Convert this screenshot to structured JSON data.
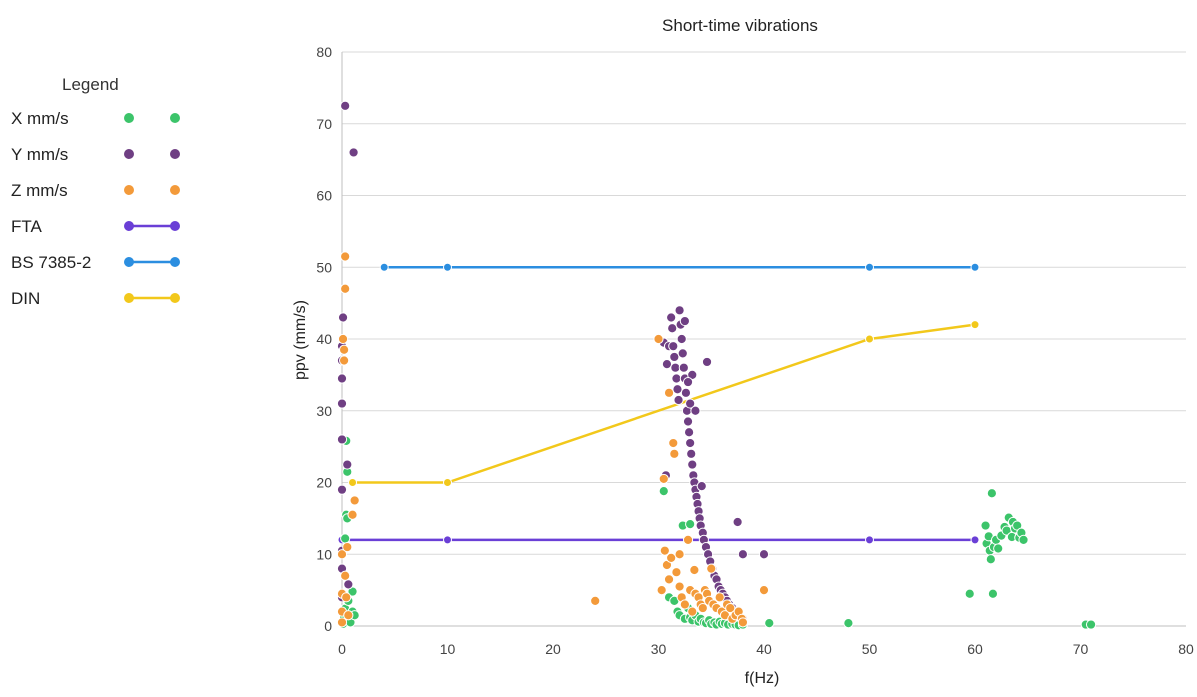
{
  "chart_data": {
    "type": "scatter",
    "title": "Short-time vibrations",
    "xlabel": "f(Hz)",
    "ylabel": "ppv (mm/s)",
    "xlim": [
      0,
      80
    ],
    "ylim": [
      0,
      80
    ],
    "xticks": [
      "0",
      "10",
      "20",
      "30",
      "40",
      "50",
      "60",
      "70",
      "80"
    ],
    "yticks": [
      "0",
      "10",
      "20",
      "30",
      "40",
      "50",
      "60",
      "70",
      "80"
    ],
    "grid": "horizontal",
    "legend_position": "left",
    "legend_title": "Legend",
    "scatter_series": [
      {
        "name": "X   mm/s",
        "color": "#3cc46a",
        "points": [
          [
            0.1,
            0.3
          ],
          [
            0.2,
            1.2
          ],
          [
            0.3,
            2.4
          ],
          [
            0.3,
            4.0
          ],
          [
            0.3,
            12.2
          ],
          [
            0.4,
            15.5
          ],
          [
            0.4,
            25.8
          ],
          [
            0.5,
            21.5
          ],
          [
            0.5,
            15.0
          ],
          [
            0.6,
            3.5
          ],
          [
            0.8,
            1.0
          ],
          [
            0.8,
            0.5
          ],
          [
            1.0,
            2.0
          ],
          [
            1.0,
            4.8
          ],
          [
            1.2,
            1.5
          ],
          [
            30.5,
            18.8
          ],
          [
            31.0,
            4.0
          ],
          [
            31.0,
            6.5
          ],
          [
            31.5,
            3.5
          ],
          [
            31.8,
            2.0
          ],
          [
            32.0,
            1.5
          ],
          [
            32.3,
            14.0
          ],
          [
            32.5,
            1.0
          ],
          [
            32.8,
            2.5
          ],
          [
            33.0,
            14.2
          ],
          [
            33.0,
            1.2
          ],
          [
            33.2,
            0.8
          ],
          [
            33.5,
            1.5
          ],
          [
            33.8,
            0.6
          ],
          [
            34.0,
            1.0
          ],
          [
            34.3,
            0.5
          ],
          [
            34.5,
            0.4
          ],
          [
            34.8,
            0.8
          ],
          [
            35.0,
            0.3
          ],
          [
            35.3,
            0.5
          ],
          [
            35.5,
            0.2
          ],
          [
            35.8,
            0.6
          ],
          [
            36.0,
            0.3
          ],
          [
            36.3,
            0.4
          ],
          [
            36.6,
            0.2
          ],
          [
            37.0,
            0.3
          ],
          [
            37.3,
            0.2
          ],
          [
            37.6,
            0.1
          ],
          [
            38.0,
            0.2
          ],
          [
            40.5,
            0.4
          ],
          [
            48.0,
            0.4
          ],
          [
            59.5,
            4.5
          ],
          [
            61.0,
            14.0
          ],
          [
            61.1,
            11.5
          ],
          [
            61.3,
            12.5
          ],
          [
            61.4,
            10.5
          ],
          [
            61.5,
            9.3
          ],
          [
            61.6,
            18.5
          ],
          [
            61.7,
            4.5
          ],
          [
            61.8,
            11.0
          ],
          [
            62.0,
            12.0
          ],
          [
            62.2,
            10.8
          ],
          [
            62.5,
            12.6
          ],
          [
            62.8,
            13.8
          ],
          [
            63.0,
            13.3
          ],
          [
            63.2,
            15.1
          ],
          [
            63.5,
            12.4
          ],
          [
            63.6,
            14.5
          ],
          [
            63.8,
            13.6
          ],
          [
            64.0,
            14.0
          ],
          [
            64.2,
            12.3
          ],
          [
            64.4,
            13.0
          ],
          [
            64.6,
            12.0
          ],
          [
            70.5,
            0.2
          ],
          [
            71.0,
            0.2
          ]
        ]
      },
      {
        "name": "Y   mm/s",
        "color": "#6f3f83",
        "points": [
          [
            0.0,
            4.0
          ],
          [
            0.0,
            8.0
          ],
          [
            0.0,
            10.5
          ],
          [
            0.0,
            19.0
          ],
          [
            0.0,
            26.0
          ],
          [
            0.0,
            31.0
          ],
          [
            0.0,
            34.5
          ],
          [
            0.0,
            37.0
          ],
          [
            0.0,
            39.0
          ],
          [
            0.1,
            43.0
          ],
          [
            0.3,
            72.5
          ],
          [
            0.5,
            22.5
          ],
          [
            0.6,
            5.8
          ],
          [
            1.1,
            66.0
          ],
          [
            30.5,
            39.5
          ],
          [
            30.7,
            21.0
          ],
          [
            30.8,
            36.5
          ],
          [
            31.0,
            39.0
          ],
          [
            31.2,
            43.0
          ],
          [
            31.3,
            41.5
          ],
          [
            31.4,
            39.0
          ],
          [
            31.5,
            37.5
          ],
          [
            31.6,
            36.0
          ],
          [
            31.7,
            34.5
          ],
          [
            31.8,
            33.0
          ],
          [
            31.9,
            31.5
          ],
          [
            32.0,
            44.0
          ],
          [
            32.1,
            42.0
          ],
          [
            32.2,
            40.0
          ],
          [
            32.3,
            38.0
          ],
          [
            32.4,
            36.0
          ],
          [
            32.5,
            34.5
          ],
          [
            32.6,
            32.5
          ],
          [
            32.7,
            30.0
          ],
          [
            32.8,
            28.5
          ],
          [
            32.9,
            27.0
          ],
          [
            33.0,
            25.5
          ],
          [
            33.1,
            24.0
          ],
          [
            33.2,
            22.5
          ],
          [
            33.3,
            21.0
          ],
          [
            33.4,
            20.0
          ],
          [
            33.5,
            19.0
          ],
          [
            33.6,
            18.0
          ],
          [
            33.7,
            17.0
          ],
          [
            33.8,
            16.0
          ],
          [
            33.9,
            15.0
          ],
          [
            34.0,
            14.0
          ],
          [
            34.1,
            19.5
          ],
          [
            34.2,
            13.0
          ],
          [
            34.3,
            12.0
          ],
          [
            34.5,
            11.0
          ],
          [
            34.6,
            36.8
          ],
          [
            34.7,
            10.0
          ],
          [
            34.9,
            9.0
          ],
          [
            35.1,
            8.0
          ],
          [
            35.3,
            7.0
          ],
          [
            35.5,
            6.5
          ],
          [
            35.7,
            5.5
          ],
          [
            35.9,
            5.0
          ],
          [
            36.1,
            4.5
          ],
          [
            36.3,
            4.0
          ],
          [
            36.5,
            3.5
          ],
          [
            36.7,
            3.0
          ],
          [
            37.0,
            2.5
          ],
          [
            37.3,
            2.0
          ],
          [
            37.5,
            14.5
          ],
          [
            38.0,
            10.0
          ],
          [
            38.0,
            1.0
          ],
          [
            40.0,
            10.0
          ],
          [
            32.5,
            42.5
          ],
          [
            33.0,
            31.0
          ],
          [
            33.5,
            30.0
          ],
          [
            33.2,
            35.0
          ],
          [
            32.8,
            34.0
          ]
        ]
      },
      {
        "name": "Z   mm/s",
        "color": "#f39a3a",
        "points": [
          [
            0.0,
            0.5
          ],
          [
            0.0,
            2.0
          ],
          [
            0.0,
            4.5
          ],
          [
            0.0,
            10.0
          ],
          [
            0.1,
            40.0
          ],
          [
            0.2,
            38.5
          ],
          [
            0.2,
            37.0
          ],
          [
            0.3,
            47.0
          ],
          [
            0.3,
            51.5
          ],
          [
            0.3,
            7.0
          ],
          [
            0.4,
            4.0
          ],
          [
            0.5,
            11.0
          ],
          [
            0.6,
            1.5
          ],
          [
            1.0,
            15.5
          ],
          [
            1.2,
            17.5
          ],
          [
            24.0,
            3.5
          ],
          [
            30.0,
            40.0
          ],
          [
            30.3,
            5.0
          ],
          [
            30.5,
            20.5
          ],
          [
            30.6,
            10.5
          ],
          [
            30.8,
            8.5
          ],
          [
            31.0,
            6.5
          ],
          [
            31.0,
            32.5
          ],
          [
            31.2,
            9.5
          ],
          [
            31.4,
            25.5
          ],
          [
            31.5,
            24.0
          ],
          [
            31.7,
            7.5
          ],
          [
            32.0,
            10.0
          ],
          [
            32.0,
            5.5
          ],
          [
            32.2,
            4.0
          ],
          [
            32.5,
            3.0
          ],
          [
            32.8,
            12.0
          ],
          [
            33.0,
            5.0
          ],
          [
            33.2,
            2.0
          ],
          [
            33.4,
            7.8
          ],
          [
            33.5,
            4.5
          ],
          [
            33.8,
            4.0
          ],
          [
            34.0,
            3.0
          ],
          [
            34.2,
            2.5
          ],
          [
            34.4,
            5.0
          ],
          [
            34.6,
            4.5
          ],
          [
            34.8,
            3.5
          ],
          [
            35.0,
            8.0
          ],
          [
            35.2,
            3.0
          ],
          [
            35.5,
            2.5
          ],
          [
            35.8,
            4.0
          ],
          [
            36.0,
            2.0
          ],
          [
            36.3,
            1.5
          ],
          [
            36.5,
            3.0
          ],
          [
            36.8,
            2.5
          ],
          [
            37.0,
            1.0
          ],
          [
            37.3,
            1.5
          ],
          [
            37.6,
            2.0
          ],
          [
            37.9,
            1.0
          ],
          [
            38.0,
            0.5
          ],
          [
            40.0,
            5.0
          ]
        ]
      }
    ],
    "line_series": [
      {
        "name": "FTA",
        "color": "#6a3fd6",
        "points": [
          [
            0,
            12
          ],
          [
            10,
            12
          ],
          [
            50,
            12
          ],
          [
            60,
            12
          ]
        ]
      },
      {
        "name": "BS 7385-2",
        "color": "#2b8ee0",
        "points": [
          [
            4,
            50
          ],
          [
            10,
            50
          ],
          [
            50,
            50
          ],
          [
            60,
            50
          ]
        ]
      },
      {
        "name": "DIN",
        "color": "#f2c81b",
        "points": [
          [
            1,
            20
          ],
          [
            10,
            20
          ],
          [
            50,
            40
          ],
          [
            60,
            42
          ]
        ]
      }
    ]
  }
}
